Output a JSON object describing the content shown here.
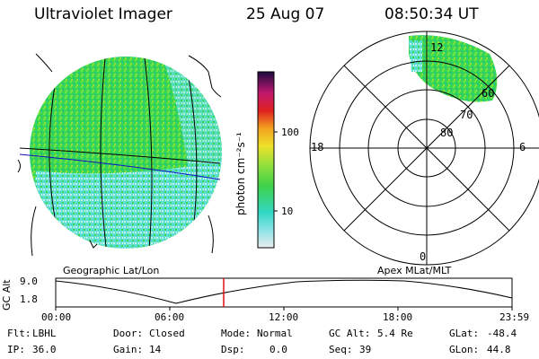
{
  "header": {
    "title": "Ultraviolet Imager",
    "date": "25 Aug 07",
    "time": "08:50:34 UT"
  },
  "left_panel": {
    "label": "Geographic Lat/Lon"
  },
  "right_panel": {
    "label": "Apex MLat/MLT",
    "mlt_labels": {
      "top": "12",
      "left": "18",
      "right": "6",
      "bottom": "0"
    },
    "mlat_labels": [
      "60",
      "70",
      "80"
    ]
  },
  "colorbar": {
    "unit_label": "photon cm⁻²s⁻¹",
    "ticks": [
      "100",
      "10"
    ]
  },
  "altitude_plot": {
    "axis_label": "GC Alt",
    "y_ticks": [
      "9.0",
      "1.8"
    ],
    "x_ticks": [
      "00:00",
      "06:00",
      "12:00",
      "18:00",
      "23:59"
    ],
    "marker_color": "#e01010"
  },
  "status": {
    "row1": [
      {
        "key": "Flt:",
        "value": "LBHL"
      },
      {
        "key": "Door:",
        "value": "Closed"
      },
      {
        "key": "Mode:",
        "value": "Normal"
      },
      {
        "key": "GC Alt:",
        "value": "5.4 Re"
      },
      {
        "key": "GLat:",
        "value": "-48.4"
      }
    ],
    "row2": [
      {
        "key": "IP:",
        "value": "36.0"
      },
      {
        "key": "Gain:",
        "value": "14"
      },
      {
        "key": "Dsp:",
        "value": "0.0"
      },
      {
        "key": "Seq:",
        "value": "39"
      },
      {
        "key": "GLon:",
        "value": "44.8"
      }
    ]
  }
}
